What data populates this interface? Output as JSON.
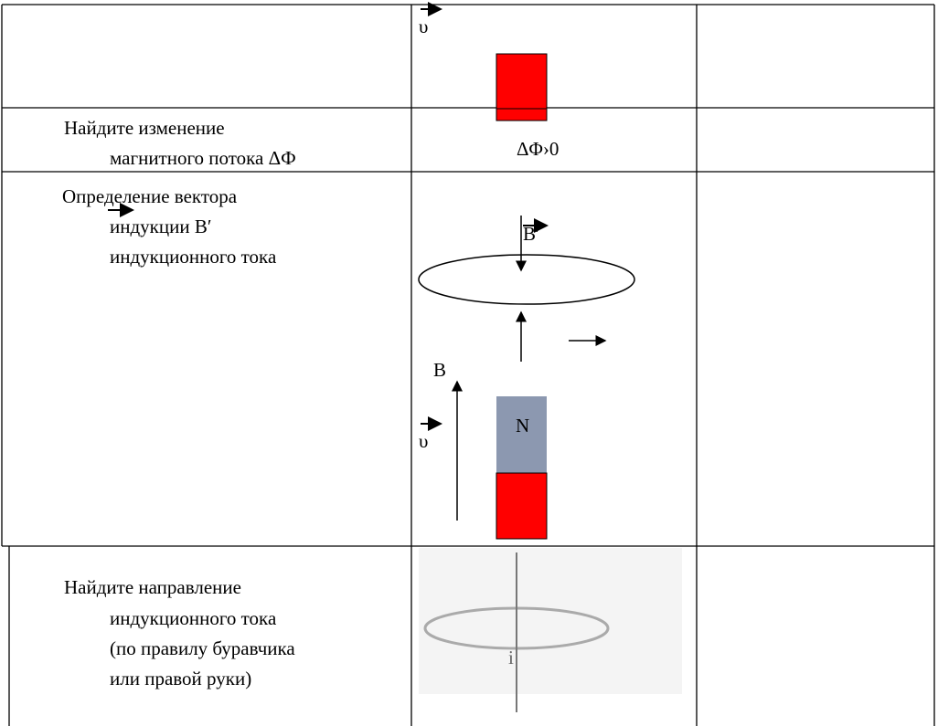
{
  "rows": [
    {
      "diagram": {
        "velocity": "υ"
      }
    },
    {
      "label": [
        "Найдите изменение",
        "магнитного потока ΔФ"
      ],
      "diagram": {
        "flux_change": "ΔΦ›0"
      }
    },
    {
      "label": [
        "Определение вектора",
        "индукции B′",
        "индукционного тока"
      ],
      "diagram": {
        "induced_field": "B′",
        "field": "B",
        "velocity": "υ",
        "pole": "N"
      }
    },
    {
      "label": [
        "Найдите направление",
        "индукционного тока",
        "(по правилу буравчика",
        "или правой руки)"
      ],
      "diagram": {
        "current": "i"
      }
    }
  ]
}
